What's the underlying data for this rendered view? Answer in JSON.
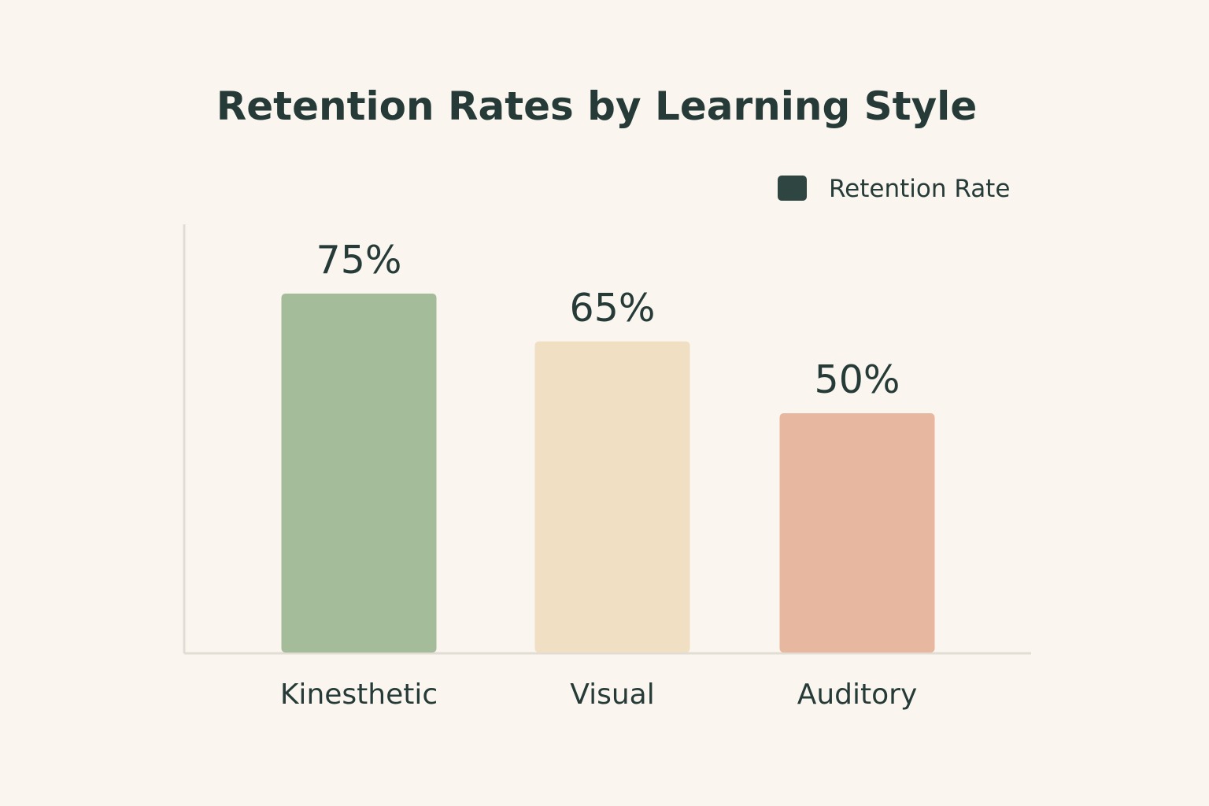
{
  "chart_data": {
    "type": "bar",
    "title": "Retention Rates by Learning Style",
    "categories": [
      "Kinesthetic",
      "Visual",
      "Auditory"
    ],
    "series": [
      {
        "name": "Retention Rate",
        "values": [
          75,
          65,
          50
        ],
        "value_labels": [
          "75%",
          "65%",
          "50%"
        ],
        "colors": [
          "#a5bc9a",
          "#f0dfc2",
          "#e8b7a0"
        ]
      }
    ],
    "legend": {
      "label": "Retention Rate",
      "placement": "top-right",
      "swatch_color": "#2f4542"
    },
    "xlabel": "",
    "ylabel": "",
    "ylim": [
      0,
      100
    ],
    "grid": false
  }
}
